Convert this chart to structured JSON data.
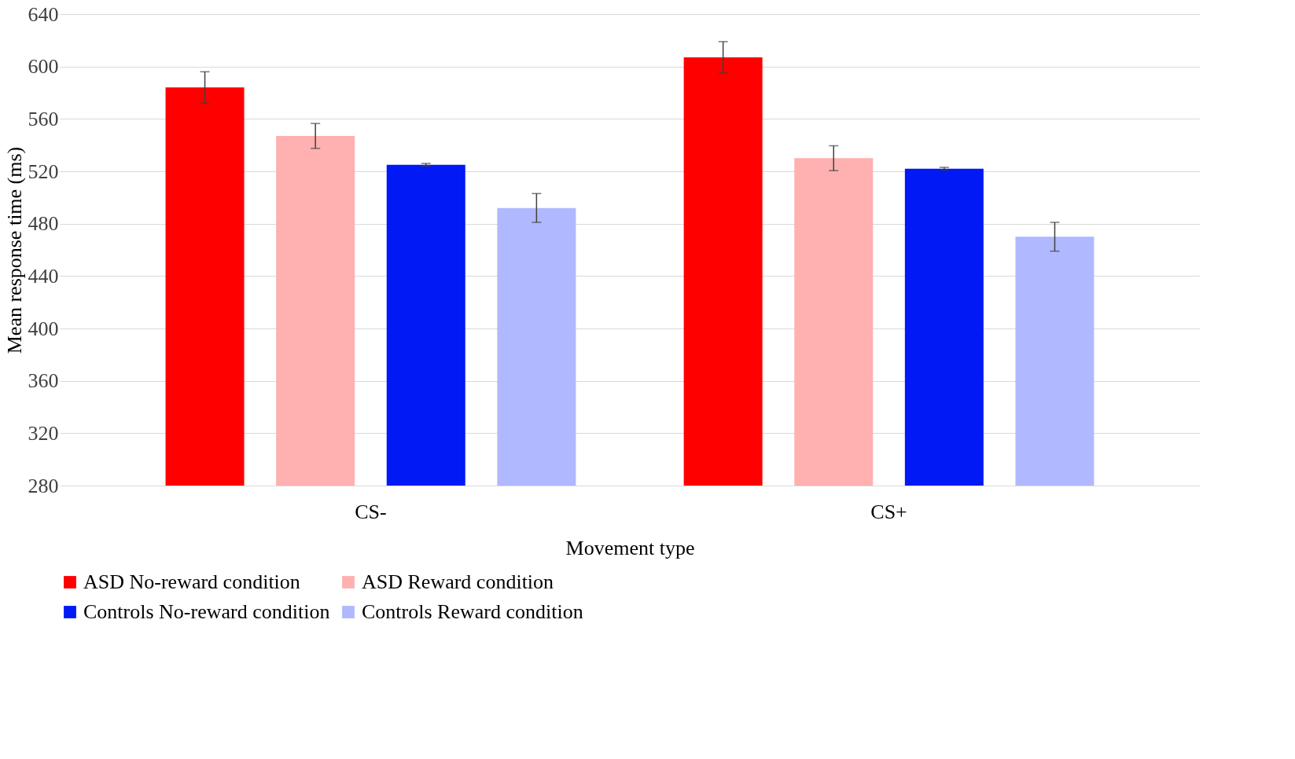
{
  "chart_data": {
    "type": "bar",
    "xlabel": "Movement type",
    "ylabel": "Mean response time (ms)",
    "categories": [
      "CS-",
      "CS+"
    ],
    "series": [
      {
        "name": "ASD No-reward condition",
        "color": "#ff0000",
        "values": [
          584,
          607
        ],
        "errors": [
          12,
          12
        ]
      },
      {
        "name": "ASD Reward condition",
        "color": "#ffb0b0",
        "values": [
          547,
          530
        ],
        "errors": [
          9.5,
          9.5
        ]
      },
      {
        "name": "Controls No-reward condition",
        "color": "#0019f5",
        "values": [
          525,
          522
        ],
        "errors": [
          1,
          1
        ]
      },
      {
        "name": "Controls Reward condition",
        "color": "#b0b8ff",
        "values": [
          492,
          470
        ],
        "errors": [
          11,
          11
        ]
      }
    ],
    "ylim": [
      280,
      640
    ],
    "yticks": [
      280,
      320,
      360,
      400,
      440,
      480,
      520,
      560,
      600,
      640
    ],
    "grid": "y",
    "legend": "bottom"
  }
}
